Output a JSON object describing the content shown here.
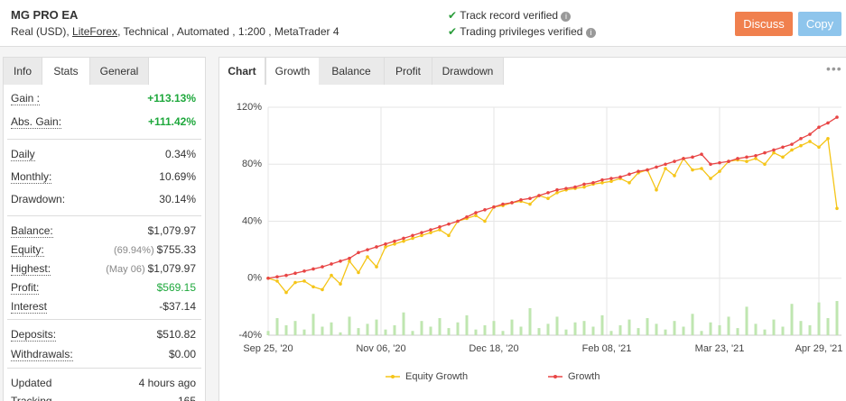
{
  "header": {
    "title": "MG PRO EA",
    "subtitle": [
      "Real (USD),",
      "LiteForex",
      ", Technical , Automated , 1:200 , MetaTrader 4"
    ],
    "verified": [
      "Track record verified",
      "Trading privileges verified"
    ],
    "buttons": [
      "Discuss",
      "Copy"
    ]
  },
  "left_tabs": [
    "Info",
    "Stats",
    "General"
  ],
  "stats": [
    [
      {
        "label": "Gain :",
        "value": "+113.13%",
        "color": "#1ea83c"
      },
      {
        "label": "Abs. Gain:",
        "value": "+111.42%",
        "color": "#1ea83c"
      }
    ],
    [
      {
        "label": "Daily",
        "value": "0.34%"
      },
      {
        "label": "Monthly:",
        "value": "10.69%"
      },
      {
        "label": "Drawdown:",
        "value": "30.14%"
      }
    ],
    [
      {
        "label": "Balance:",
        "value": "$1,079.97"
      },
      {
        "label": "Equity:",
        "note": "(69.94%)",
        "value": "$755.33"
      },
      {
        "label": "Highest:",
        "note": "(May 06)",
        "value": "$1,079.97"
      },
      {
        "label": "Profit:",
        "value": "$569.15",
        "color": "#1ea83c"
      },
      {
        "label": "Interest",
        "value": "-$37.14"
      }
    ],
    [
      {
        "label": "Deposits:",
        "value": "$510.82"
      },
      {
        "label": "Withdrawals:",
        "value": "$0.00"
      }
    ],
    [
      {
        "label": "Updated",
        "value": "4 hours ago"
      },
      {
        "label": "Tracking",
        "value": "165"
      }
    ]
  ],
  "chart_tabs": [
    "Chart",
    "Growth",
    "Balance",
    "Profit",
    "Drawdown"
  ],
  "chart_data": {
    "type": "line",
    "x": [
      0,
      2,
      4,
      6,
      8,
      10,
      12,
      14,
      16,
      18,
      20,
      22,
      24,
      26,
      28,
      30,
      32,
      34,
      36,
      38,
      40,
      42,
      44,
      46,
      48,
      50,
      52,
      54,
      56,
      58,
      60,
      62,
      64,
      66,
      68,
      70,
      72,
      74,
      76,
      78,
      80,
      82,
      84,
      86,
      88,
      90,
      92,
      94,
      96,
      98,
      100,
      102,
      104,
      106,
      108,
      110,
      112,
      114,
      116,
      118,
      120,
      122,
      124,
      126
    ],
    "series": [
      {
        "name": "Equity Growth",
        "color": "#f5c518",
        "values": [
          0,
          -2,
          -10,
          -3,
          -2,
          -6,
          -8,
          2,
          -4,
          12,
          4,
          15,
          8,
          22,
          24,
          26,
          28,
          30,
          32,
          34,
          30,
          40,
          42,
          44,
          40,
          50,
          51,
          53,
          54,
          52,
          58,
          56,
          60,
          62,
          63,
          64,
          66,
          67,
          68,
          70,
          67,
          74,
          76,
          62,
          77,
          72,
          84,
          76,
          77,
          70,
          75,
          82,
          83,
          82,
          84,
          80,
          88,
          85,
          90,
          93,
          96,
          92,
          98,
          49
        ]
      },
      {
        "name": "Growth",
        "color": "#e84545",
        "values": [
          0,
          1,
          2,
          3.5,
          5,
          6.5,
          8,
          10,
          12,
          14,
          18,
          20,
          22,
          24,
          26,
          28,
          30,
          32,
          34,
          36,
          38,
          40,
          43,
          46,
          48,
          50,
          52,
          53,
          55,
          56,
          58,
          60,
          62,
          63,
          64,
          66,
          67,
          69,
          70,
          71,
          73,
          75,
          76,
          78,
          80,
          82,
          84,
          85,
          87,
          80,
          81,
          82,
          84,
          85,
          86,
          88,
          90,
          92,
          94,
          98,
          101,
          106,
          109,
          113
        ]
      }
    ],
    "bar_values": [
      -37,
      -28,
      -33,
      -30,
      -36,
      -25,
      -34,
      -31,
      -38,
      -27,
      -35,
      -32,
      -29,
      -36,
      -33,
      -24,
      -37,
      -30,
      -34,
      -28,
      -35,
      -31,
      -26,
      -36,
      -33,
      -30,
      -37,
      -29,
      -34,
      -21,
      -35,
      -32,
      -27,
      -36,
      -31,
      -30,
      -34,
      -26,
      -37,
      -33,
      -29,
      -35,
      -28,
      -32,
      -36,
      -30,
      -34,
      -25,
      -37,
      -31,
      -33,
      -27,
      -35,
      -20,
      -32,
      -36,
      -29,
      -34,
      -18,
      -30,
      -33,
      -17,
      -28,
      -16
    ],
    "bar_color": "#bfe6b0",
    "xlim": [
      0,
      127
    ],
    "xticks": [
      {
        "value": 0,
        "label": "Sep 25, '20"
      },
      {
        "value": 25,
        "label": "Nov 06, '20"
      },
      {
        "value": 50,
        "label": "Dec 18, '20"
      },
      {
        "value": 75,
        "label": "Feb 08, '21"
      },
      {
        "value": 100,
        "label": "Mar 23, '21"
      },
      {
        "value": 122,
        "label": "Apr 29, '21"
      }
    ],
    "ylim": [
      -40,
      120
    ],
    "yticks": [
      {
        "value": -40,
        "label": "-40%"
      },
      {
        "value": 0,
        "label": "0%"
      },
      {
        "value": 40,
        "label": "40%"
      },
      {
        "value": 80,
        "label": "80%"
      },
      {
        "value": 120,
        "label": "120%"
      }
    ],
    "grid": true,
    "legend": "bottom"
  }
}
